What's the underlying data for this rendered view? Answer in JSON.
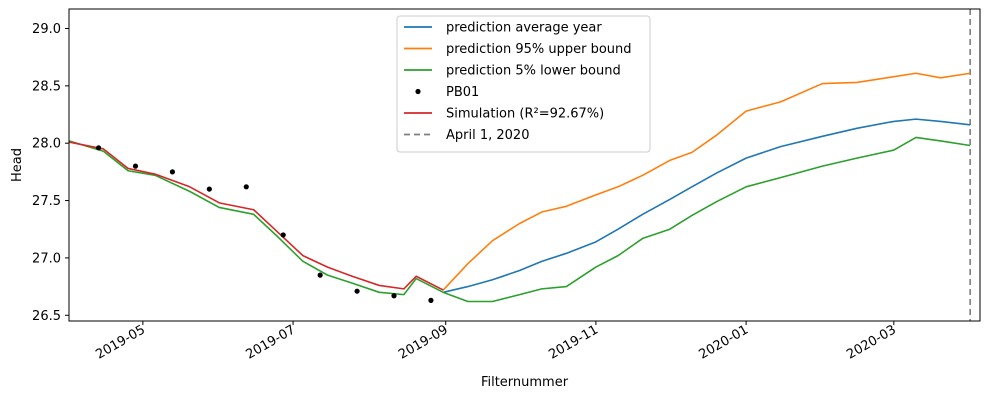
{
  "chart_data": {
    "type": "line",
    "xlabel": "Filternummer",
    "ylabel": "Head",
    "xlim": [
      "2019-04-01",
      "2020-04-05"
    ],
    "ylim": [
      26.45,
      29.17
    ],
    "grid": false,
    "legend_position": "top-center",
    "x_ticks": [
      {
        "date": "2019-05-01",
        "label": "2019-05"
      },
      {
        "date": "2019-07-01",
        "label": "2019-07"
      },
      {
        "date": "2019-09-01",
        "label": "2019-09"
      },
      {
        "date": "2019-11-01",
        "label": "2019-11"
      },
      {
        "date": "2020-01-01",
        "label": "2020-01"
      },
      {
        "date": "2020-03-01",
        "label": "2020-03"
      }
    ],
    "y_ticks": [
      {
        "value": 26.5,
        "label": "26.5"
      },
      {
        "value": 27.0,
        "label": "27.0"
      },
      {
        "value": 27.5,
        "label": "27.5"
      },
      {
        "value": 28.0,
        "label": "28.0"
      },
      {
        "value": 28.5,
        "label": "28.5"
      },
      {
        "value": 29.0,
        "label": "29.0"
      }
    ],
    "series": [
      {
        "name": "prediction average year",
        "color": "#1f77b4",
        "style": "line",
        "x": [
          "2019-08-31",
          "2019-09-10",
          "2019-09-20",
          "2019-10-01",
          "2019-10-10",
          "2019-10-20",
          "2019-11-01",
          "2019-11-10",
          "2019-11-20",
          "2019-12-01",
          "2019-12-10",
          "2019-12-20",
          "2020-01-01",
          "2020-01-15",
          "2020-02-01",
          "2020-02-15",
          "2020-03-01",
          "2020-03-10",
          "2020-03-20",
          "2020-04-01"
        ],
        "y": [
          26.7,
          26.75,
          26.81,
          26.89,
          26.97,
          27.04,
          27.14,
          27.25,
          27.38,
          27.51,
          27.62,
          27.74,
          27.87,
          27.97,
          28.06,
          28.13,
          28.19,
          28.21,
          28.19,
          28.16
        ]
      },
      {
        "name": "prediction 95% upper bound",
        "color": "#ff7f0e",
        "style": "line",
        "x": [
          "2019-08-31",
          "2019-09-10",
          "2019-09-20",
          "2019-10-01",
          "2019-10-10",
          "2019-10-20",
          "2019-11-01",
          "2019-11-10",
          "2019-11-20",
          "2019-12-01",
          "2019-12-10",
          "2019-12-20",
          "2020-01-01",
          "2020-01-15",
          "2020-02-01",
          "2020-02-15",
          "2020-03-01",
          "2020-03-10",
          "2020-03-20",
          "2020-04-01"
        ],
        "y": [
          26.72,
          26.95,
          27.15,
          27.3,
          27.4,
          27.45,
          27.55,
          27.62,
          27.72,
          27.85,
          27.92,
          28.07,
          28.28,
          28.36,
          28.52,
          28.53,
          28.58,
          28.61,
          28.57,
          28.61
        ]
      },
      {
        "name": "prediction 5% lower bound",
        "color": "#2ca02c",
        "style": "line",
        "x": [
          "2019-04-01",
          "2019-04-15",
          "2019-04-25",
          "2019-05-06",
          "2019-05-20",
          "2019-06-01",
          "2019-06-15",
          "2019-06-25",
          "2019-07-05",
          "2019-07-15",
          "2019-07-25",
          "2019-08-05",
          "2019-08-15",
          "2019-08-20",
          "2019-08-31",
          "2019-09-10",
          "2019-09-20",
          "2019-10-01",
          "2019-10-10",
          "2019-10-20",
          "2019-11-01",
          "2019-11-10",
          "2019-11-20",
          "2019-12-01",
          "2019-12-10",
          "2019-12-20",
          "2020-01-01",
          "2020-01-15",
          "2020-02-01",
          "2020-02-15",
          "2020-03-01",
          "2020-03-10",
          "2020-03-20",
          "2020-04-01"
        ],
        "y": [
          28.02,
          27.93,
          27.76,
          27.72,
          27.58,
          27.44,
          27.38,
          27.18,
          26.97,
          26.85,
          26.78,
          26.7,
          26.68,
          26.82,
          26.7,
          26.62,
          26.62,
          26.68,
          26.73,
          26.75,
          26.92,
          27.02,
          27.17,
          27.25,
          27.37,
          27.49,
          27.62,
          27.7,
          27.8,
          27.87,
          27.94,
          28.05,
          28.02,
          27.98
        ]
      },
      {
        "name": "PB01",
        "color": "#000000",
        "style": "points",
        "x": [
          "2019-04-13",
          "2019-04-28",
          "2019-05-13",
          "2019-05-28",
          "2019-06-12",
          "2019-06-27",
          "2019-07-12",
          "2019-07-27",
          "2019-08-11",
          "2019-08-26"
        ],
        "y": [
          27.96,
          27.8,
          27.75,
          27.6,
          27.62,
          27.2,
          26.85,
          26.71,
          26.67,
          26.63
        ]
      },
      {
        "name": "Simulation (R²=92.67%)",
        "color": "#d62728",
        "style": "line",
        "x": [
          "2019-04-01",
          "2019-04-15",
          "2019-04-25",
          "2019-05-06",
          "2019-05-20",
          "2019-06-01",
          "2019-06-15",
          "2019-06-25",
          "2019-07-05",
          "2019-07-15",
          "2019-07-25",
          "2019-08-05",
          "2019-08-15",
          "2019-08-20",
          "2019-08-31"
        ],
        "y": [
          28.01,
          27.95,
          27.78,
          27.73,
          27.62,
          27.48,
          27.42,
          27.22,
          27.02,
          26.92,
          26.84,
          26.76,
          26.73,
          26.84,
          26.72
        ]
      },
      {
        "name": "April 1, 2020",
        "color": "#7f7f7f",
        "style": "vline",
        "x": [
          "2020-04-01"
        ]
      }
    ]
  }
}
